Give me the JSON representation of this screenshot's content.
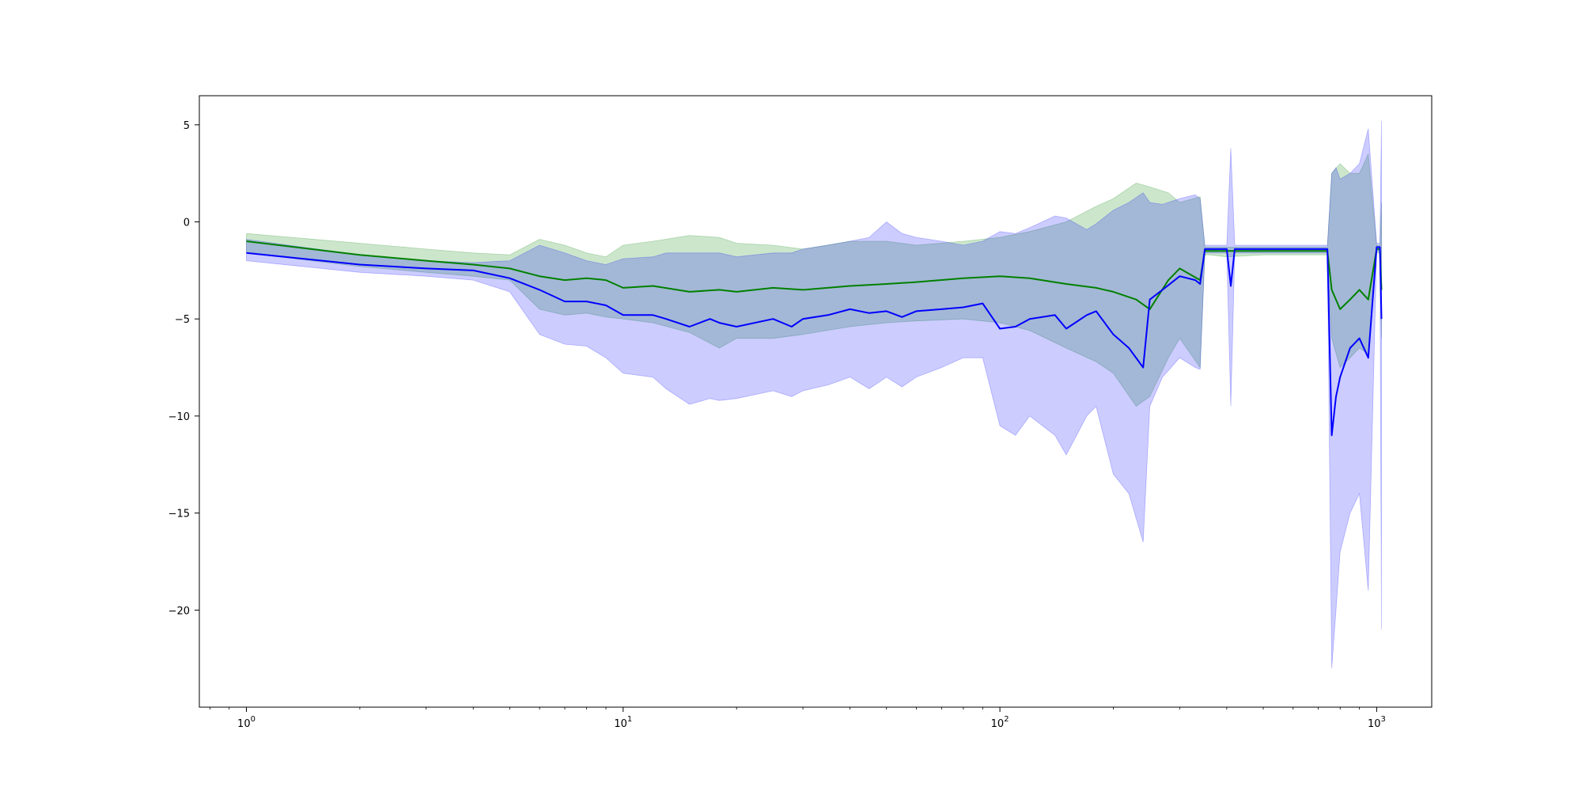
{
  "chart_data": {
    "type": "line",
    "title": "",
    "xlabel": "",
    "ylabel": "",
    "x_scale": "log",
    "xlim": [
      0.75,
      1400
    ],
    "ylim": [
      -25,
      6.5
    ],
    "grid": false,
    "legend": "none",
    "x_ticks": [
      {
        "value": 1,
        "base": "10",
        "exp": "0"
      },
      {
        "value": 10,
        "base": "10",
        "exp": "1"
      },
      {
        "value": 100,
        "base": "10",
        "exp": "2"
      },
      {
        "value": 1000,
        "base": "10",
        "exp": "3"
      }
    ],
    "y_ticks": [
      {
        "value": 5,
        "label": "5"
      },
      {
        "value": 0,
        "label": "0"
      },
      {
        "value": -5,
        "label": "−5"
      },
      {
        "value": -10,
        "label": "−10"
      },
      {
        "value": -15,
        "label": "−15"
      },
      {
        "value": -20,
        "label": "−20"
      }
    ],
    "series": [
      {
        "color": "#008000",
        "band_color": "#008000",
        "band_opacity": 0.2,
        "x": [
          1,
          2,
          3,
          4,
          5,
          6,
          7,
          8,
          9,
          10,
          12,
          15,
          18,
          20,
          25,
          30,
          40,
          50,
          60,
          80,
          100,
          120,
          150,
          180,
          200,
          230,
          250,
          280,
          300,
          340,
          350,
          360,
          400,
          500,
          600,
          700,
          740,
          760,
          800,
          850,
          900,
          950,
          1000,
          1020,
          1030
        ],
        "y": [
          -1.0,
          -1.7,
          -2.0,
          -2.2,
          -2.4,
          -2.8,
          -3.0,
          -2.9,
          -3.0,
          -3.4,
          -3.3,
          -3.6,
          -3.5,
          -3.6,
          -3.4,
          -3.5,
          -3.3,
          -3.2,
          -3.1,
          -2.9,
          -2.8,
          -2.9,
          -3.2,
          -3.4,
          -3.6,
          -4.0,
          -4.5,
          -3.0,
          -2.4,
          -3.0,
          -1.5,
          -1.5,
          -1.5,
          -1.5,
          -1.5,
          -1.5,
          -1.5,
          -3.5,
          -4.5,
          -4.0,
          -3.5,
          -4.0,
          -1.4,
          -1.4,
          -3.5
        ],
        "lower": [
          -1.6,
          -2.3,
          -2.6,
          -2.8,
          -3.0,
          -4.5,
          -4.8,
          -4.7,
          -4.9,
          -5.0,
          -5.2,
          -5.7,
          -6.5,
          -6.0,
          -6.0,
          -5.8,
          -5.4,
          -5.2,
          -5.1,
          -5.0,
          -5.2,
          -5.6,
          -6.5,
          -7.2,
          -7.8,
          -9.5,
          -9.0,
          -7.0,
          -6.0,
          -7.5,
          -1.7,
          -1.7,
          -1.8,
          -1.7,
          -1.7,
          -1.7,
          -1.7,
          -6.0,
          -7.5,
          -7.0,
          -6.5,
          -6.8,
          -1.6,
          -1.6,
          -6.0
        ],
        "upper": [
          -0.6,
          -1.1,
          -1.4,
          -1.6,
          -1.7,
          -0.9,
          -1.2,
          -1.6,
          -1.8,
          -1.2,
          -1.0,
          -0.7,
          -0.8,
          -1.1,
          -1.2,
          -1.4,
          -1.0,
          -1.0,
          -1.2,
          -1.0,
          -0.8,
          -0.5,
          0.0,
          0.8,
          1.2,
          2.0,
          1.8,
          1.5,
          1.0,
          1.3,
          -1.3,
          -1.3,
          -1.3,
          -1.3,
          -1.3,
          -1.3,
          -1.3,
          2.5,
          3.0,
          2.5,
          2.5,
          3.5,
          -1.2,
          -1.2,
          1.0
        ]
      },
      {
        "color": "#0000ff",
        "band_color": "#0000ff",
        "band_opacity": 0.2,
        "x": [
          1,
          2,
          3,
          4,
          5,
          6,
          7,
          8,
          9,
          10,
          12,
          13,
          15,
          17,
          18,
          20,
          25,
          28,
          30,
          35,
          40,
          45,
          50,
          55,
          60,
          70,
          80,
          90,
          100,
          110,
          120,
          140,
          150,
          170,
          180,
          200,
          220,
          240,
          250,
          270,
          300,
          330,
          340,
          350,
          360,
          400,
          410,
          420,
          500,
          600,
          700,
          740,
          760,
          780,
          800,
          850,
          900,
          950,
          1000,
          1020,
          1030
        ],
        "y": [
          -1.6,
          -2.2,
          -2.4,
          -2.5,
          -2.9,
          -3.5,
          -4.1,
          -4.1,
          -4.3,
          -4.8,
          -4.8,
          -5.0,
          -5.4,
          -5.0,
          -5.2,
          -5.4,
          -5.0,
          -5.4,
          -5.0,
          -4.8,
          -4.5,
          -4.7,
          -4.6,
          -4.9,
          -4.6,
          -4.5,
          -4.4,
          -4.2,
          -5.5,
          -5.4,
          -5.0,
          -4.8,
          -5.5,
          -4.8,
          -4.6,
          -5.8,
          -6.5,
          -7.5,
          -4.0,
          -3.5,
          -2.8,
          -3.0,
          -3.2,
          -1.4,
          -1.4,
          -1.4,
          -3.3,
          -1.4,
          -1.4,
          -1.4,
          -1.4,
          -1.4,
          -11.0,
          -9.0,
          -8.0,
          -6.5,
          -6.0,
          -7.0,
          -1.3,
          -1.3,
          -5.0
        ],
        "lower": [
          -2.0,
          -2.6,
          -2.8,
          -3.0,
          -3.6,
          -5.8,
          -6.3,
          -6.4,
          -7.0,
          -7.8,
          -8.0,
          -8.6,
          -9.4,
          -9.1,
          -9.2,
          -9.1,
          -8.7,
          -9.0,
          -8.7,
          -8.4,
          -8.0,
          -8.6,
          -8.0,
          -8.5,
          -8.0,
          -7.5,
          -7.0,
          -7.0,
          -10.5,
          -11.0,
          -10.0,
          -11.0,
          -12.0,
          -10.0,
          -9.5,
          -13.0,
          -14.0,
          -16.5,
          -9.5,
          -8.0,
          -7.0,
          -7.5,
          -7.6,
          -1.6,
          -1.6,
          -1.6,
          -9.5,
          -1.6,
          -1.6,
          -1.6,
          -1.6,
          -1.6,
          -23.0,
          -20.0,
          -17.0,
          -15.0,
          -14.0,
          -19.0,
          -1.5,
          -1.5,
          -21.0
        ],
        "upper": [
          -0.9,
          -1.7,
          -2.0,
          -2.1,
          -2.0,
          -1.2,
          -1.6,
          -2.0,
          -2.2,
          -1.9,
          -1.8,
          -1.6,
          -1.6,
          -1.6,
          -1.6,
          -1.8,
          -1.6,
          -1.6,
          -1.4,
          -1.2,
          -1.0,
          -0.8,
          0.0,
          -0.6,
          -0.8,
          -1.0,
          -1.2,
          -1.0,
          -0.5,
          -0.6,
          -0.3,
          0.3,
          0.2,
          -0.4,
          -0.1,
          0.6,
          1.0,
          1.5,
          1.0,
          0.9,
          1.2,
          1.4,
          1.2,
          -1.2,
          -1.2,
          -1.2,
          3.8,
          -1.2,
          -1.2,
          -1.2,
          -1.2,
          -1.2,
          2.5,
          2.8,
          2.2,
          2.5,
          3.0,
          4.8,
          -1.1,
          -1.1,
          5.2
        ]
      }
    ]
  }
}
